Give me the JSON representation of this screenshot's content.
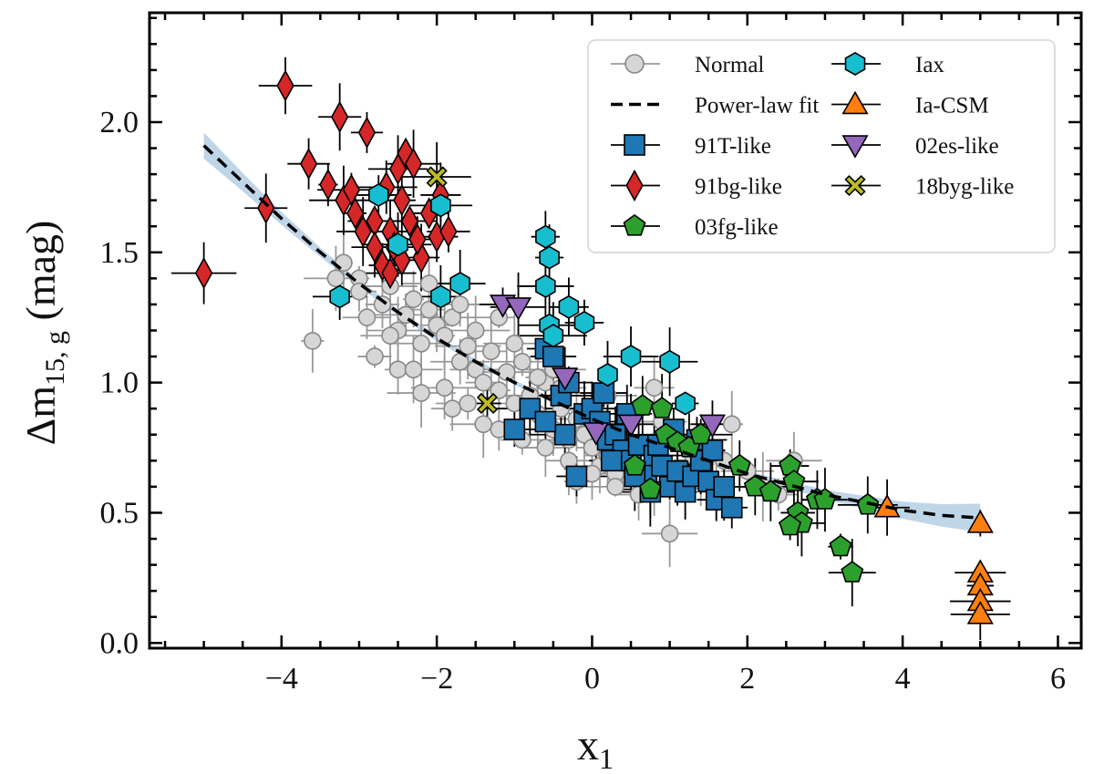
{
  "chart_data": {
    "type": "scatter",
    "xlabel": {
      "main": "x",
      "sub": "1"
    },
    "ylabel": {
      "main": "Δm",
      "sub": "15, g",
      "unit": "(mag)"
    },
    "xlim": [
      -5.7,
      6.3
    ],
    "ylim": [
      -0.02,
      2.42
    ],
    "xticks": [
      -4,
      -2,
      0,
      2,
      4,
      6
    ],
    "xtick_labels": [
      "−4",
      "−2",
      "0",
      "2",
      "4",
      "6"
    ],
    "yticks": [
      0.0,
      0.5,
      1.0,
      1.5,
      2.0
    ],
    "ytick_labels": [
      "0.0",
      "0.5",
      "1.0",
      "1.5",
      "2.0"
    ],
    "grid": false,
    "legend_position": "top-right",
    "legend_columns": 2,
    "colors": {
      "normal": "#d6d6d6",
      "t91": "#1f77b4",
      "bg91": "#d62728",
      "fg03": "#2ca02c",
      "iax": "#17becf",
      "csm": "#ff7f0e",
      "es02": "#9467bd",
      "byg18": "#bcbd22",
      "fit": "#000000",
      "band": "#aac8e2"
    },
    "fit": {
      "name": "Power-law fit",
      "x": [
        -5.0,
        -4.5,
        -4.0,
        -3.5,
        -3.0,
        -2.5,
        -2.0,
        -1.5,
        -1.0,
        -0.5,
        0.0,
        0.5,
        1.0,
        1.5,
        2.0,
        2.5,
        3.0,
        3.5,
        4.0,
        4.5,
        5.0
      ],
      "y": [
        1.91,
        1.77,
        1.63,
        1.5,
        1.38,
        1.27,
        1.17,
        1.08,
        1.0,
        0.93,
        0.86,
        0.8,
        0.75,
        0.7,
        0.65,
        0.61,
        0.57,
        0.54,
        0.51,
        0.49,
        0.48
      ],
      "band_halfwidth": [
        0.05,
        0.035,
        0.025,
        0.018,
        0.014,
        0.012,
        0.011,
        0.01,
        0.009,
        0.009,
        0.008,
        0.008,
        0.008,
        0.009,
        0.01,
        0.013,
        0.018,
        0.025,
        0.033,
        0.043,
        0.055
      ]
    },
    "series": [
      {
        "name": "Normal",
        "key": "normal",
        "marker": "circle",
        "points": [
          [
            -3.2,
            1.46
          ],
          [
            -3.0,
            1.4
          ],
          [
            -2.9,
            1.25
          ],
          [
            -2.7,
            1.3
          ],
          [
            -2.6,
            1.37
          ],
          [
            -2.5,
            1.2
          ],
          [
            -2.4,
            1.26
          ],
          [
            -2.3,
            1.32
          ],
          [
            -2.2,
            1.15
          ],
          [
            -2.1,
            1.28
          ],
          [
            -2.0,
            1.22
          ],
          [
            -1.9,
            1.18
          ],
          [
            -1.8,
            1.25
          ],
          [
            -1.7,
            1.08
          ],
          [
            -1.6,
            1.14
          ],
          [
            -1.5,
            1.05
          ],
          [
            -1.4,
            1.0
          ],
          [
            -1.3,
            1.12
          ],
          [
            -1.2,
            0.97
          ],
          [
            -1.1,
            1.04
          ],
          [
            -1.0,
            0.92
          ],
          [
            -0.9,
            1.08
          ],
          [
            -0.8,
            0.95
          ],
          [
            -0.7,
            0.88
          ],
          [
            -0.6,
            1.0
          ],
          [
            -0.5,
            0.82
          ],
          [
            -0.4,
            0.9
          ],
          [
            -0.3,
            0.78
          ],
          [
            -0.2,
            0.86
          ],
          [
            -0.1,
            0.8
          ],
          [
            0.0,
            0.75
          ],
          [
            0.1,
            0.68
          ],
          [
            0.2,
            0.72
          ],
          [
            0.3,
            0.65
          ],
          [
            0.4,
            0.7
          ],
          [
            0.6,
            0.66
          ],
          [
            0.8,
            0.62
          ],
          [
            1.0,
            0.64
          ],
          [
            1.2,
            0.6
          ],
          [
            1.4,
            0.62
          ],
          [
            1.6,
            0.58
          ],
          [
            1.8,
            0.84
          ],
          [
            2.0,
            0.66
          ],
          [
            2.2,
            0.6
          ],
          [
            2.4,
            0.57
          ],
          [
            -2.8,
            1.1
          ],
          [
            -2.5,
            1.05
          ],
          [
            -2.2,
            0.96
          ],
          [
            -1.9,
            0.98
          ],
          [
            -1.6,
            0.92
          ],
          [
            -1.4,
            0.84
          ],
          [
            -1.2,
            0.82
          ],
          [
            -0.9,
            0.78
          ],
          [
            -0.6,
            0.75
          ],
          [
            -0.3,
            0.7
          ],
          [
            0.0,
            0.65
          ],
          [
            0.3,
            0.6
          ],
          [
            0.6,
            0.57
          ],
          [
            -1.8,
            0.9
          ],
          [
            -2.6,
            1.18
          ],
          [
            -3.0,
            1.35
          ],
          [
            -3.3,
            1.4
          ],
          [
            -2.1,
            1.38
          ],
          [
            -1.5,
            1.2
          ],
          [
            -1.0,
            1.15
          ],
          [
            -0.5,
            1.05
          ],
          [
            0.2,
            0.95
          ],
          [
            0.9,
            0.85
          ],
          [
            1.3,
            0.72
          ],
          [
            1.7,
            0.7
          ],
          [
            -3.6,
            1.16
          ],
          [
            1.0,
            0.42
          ],
          [
            0.8,
            0.98
          ],
          [
            -0.2,
            0.62
          ],
          [
            2.6,
            0.7
          ],
          [
            -0.7,
            1.02
          ],
          [
            -1.2,
            1.25
          ],
          [
            -2.3,
            1.05
          ],
          [
            -1.7,
            1.3
          ],
          [
            -0.4,
            0.98
          ]
        ]
      },
      {
        "name": "91T-like",
        "key": "t91",
        "marker": "square",
        "points": [
          [
            -0.6,
            1.13
          ],
          [
            -0.5,
            1.1
          ],
          [
            -0.4,
            0.95
          ],
          [
            -0.3,
            1.0
          ],
          [
            -0.1,
            0.88
          ],
          [
            0.0,
            0.9
          ],
          [
            0.1,
            0.85
          ],
          [
            0.2,
            0.78
          ],
          [
            0.3,
            0.8
          ],
          [
            0.4,
            0.74
          ],
          [
            0.5,
            0.7
          ],
          [
            0.6,
            0.76
          ],
          [
            0.7,
            0.65
          ],
          [
            0.8,
            0.72
          ],
          [
            0.9,
            0.68
          ],
          [
            1.0,
            0.6
          ],
          [
            1.1,
            0.66
          ],
          [
            1.2,
            0.58
          ],
          [
            1.3,
            0.64
          ],
          [
            1.4,
            0.7
          ],
          [
            1.5,
            0.62
          ],
          [
            1.6,
            0.55
          ],
          [
            1.7,
            0.6
          ],
          [
            1.8,
            0.52
          ],
          [
            -0.8,
            0.9
          ],
          [
            -1.0,
            0.82
          ],
          [
            -0.2,
            0.64
          ],
          [
            0.45,
            0.88
          ],
          [
            1.05,
            0.82
          ],
          [
            0.25,
            0.7
          ],
          [
            0.75,
            0.58
          ],
          [
            1.35,
            0.78
          ],
          [
            -0.35,
            0.8
          ],
          [
            0.55,
            0.64
          ],
          [
            0.15,
            0.96
          ],
          [
            -0.6,
            0.85
          ],
          [
            1.55,
            0.74
          ],
          [
            0.85,
            0.76
          ]
        ]
      },
      {
        "name": "91bg-like",
        "key": "bg91",
        "marker": "diamond",
        "points": [
          [
            -5.0,
            1.42
          ],
          [
            -4.2,
            1.67
          ],
          [
            -3.95,
            2.14
          ],
          [
            -3.65,
            1.84
          ],
          [
            -3.4,
            1.76
          ],
          [
            -3.25,
            2.02
          ],
          [
            -3.2,
            1.7
          ],
          [
            -3.1,
            1.74
          ],
          [
            -3.05,
            1.65
          ],
          [
            -2.9,
            1.96
          ],
          [
            -2.95,
            1.58
          ],
          [
            -2.8,
            1.62
          ],
          [
            -2.7,
            1.45
          ],
          [
            -2.6,
            1.58
          ],
          [
            -2.55,
            1.52
          ],
          [
            -2.5,
            1.82
          ],
          [
            -2.45,
            1.7
          ],
          [
            -2.4,
            1.88
          ],
          [
            -2.35,
            1.62
          ],
          [
            -2.3,
            1.84
          ],
          [
            -2.2,
            1.48
          ],
          [
            -2.1,
            1.65
          ],
          [
            -2.0,
            1.56
          ],
          [
            -1.95,
            1.72
          ],
          [
            -1.85,
            1.58
          ],
          [
            -2.6,
            1.42
          ],
          [
            -2.25,
            1.55
          ],
          [
            -2.45,
            1.47
          ],
          [
            -2.65,
            1.75
          ],
          [
            -2.8,
            1.52
          ]
        ]
      },
      {
        "name": "03fg-like",
        "key": "fg03",
        "marker": "pentagon",
        "points": [
          [
            0.55,
            0.68
          ],
          [
            0.65,
            0.91
          ],
          [
            0.75,
            0.59
          ],
          [
            0.9,
            0.9
          ],
          [
            0.95,
            0.8
          ],
          [
            1.1,
            0.77
          ],
          [
            1.25,
            0.75
          ],
          [
            1.4,
            0.8
          ],
          [
            1.9,
            0.68
          ],
          [
            2.1,
            0.6
          ],
          [
            2.3,
            0.58
          ],
          [
            2.55,
            0.68
          ],
          [
            2.6,
            0.62
          ],
          [
            2.65,
            0.5
          ],
          [
            2.7,
            0.46
          ],
          [
            2.9,
            0.55
          ],
          [
            3.0,
            0.55
          ],
          [
            3.2,
            0.37
          ],
          [
            3.35,
            0.27
          ],
          [
            3.55,
            0.53
          ],
          [
            2.55,
            0.45
          ]
        ]
      },
      {
        "name": "Iax",
        "key": "iax",
        "marker": "hexagon",
        "points": [
          [
            -3.25,
            1.33
          ],
          [
            -2.75,
            1.72
          ],
          [
            -2.5,
            1.53
          ],
          [
            -1.95,
            1.68
          ],
          [
            -1.95,
            1.33
          ],
          [
            -1.7,
            1.38
          ],
          [
            -0.6,
            1.56
          ],
          [
            -0.55,
            1.48
          ],
          [
            -0.6,
            1.37
          ],
          [
            -0.55,
            1.22
          ],
          [
            -0.5,
            1.18
          ],
          [
            -0.3,
            1.29
          ],
          [
            -0.1,
            1.23
          ],
          [
            0.2,
            1.03
          ],
          [
            0.5,
            1.1
          ],
          [
            1.0,
            1.08
          ],
          [
            1.2,
            0.92
          ]
        ]
      },
      {
        "name": "Ia-CSM",
        "key": "csm",
        "marker": "triangle-up",
        "points": [
          [
            3.8,
            0.52
          ],
          [
            5.0,
            0.46
          ],
          [
            5.0,
            0.27
          ],
          [
            5.0,
            0.22
          ],
          [
            5.0,
            0.16
          ],
          [
            5.0,
            0.11
          ]
        ]
      },
      {
        "name": "02es-like",
        "key": "es02",
        "marker": "triangle-down",
        "points": [
          [
            -1.15,
            1.3
          ],
          [
            -0.95,
            1.29
          ],
          [
            -0.35,
            1.02
          ],
          [
            0.05,
            0.81
          ],
          [
            0.5,
            0.84
          ],
          [
            1.55,
            0.84
          ]
        ]
      },
      {
        "name": "18byg-like",
        "key": "byg18",
        "marker": "x",
        "points": [
          [
            -2.0,
            1.79
          ],
          [
            -1.35,
            0.92
          ]
        ]
      }
    ]
  }
}
